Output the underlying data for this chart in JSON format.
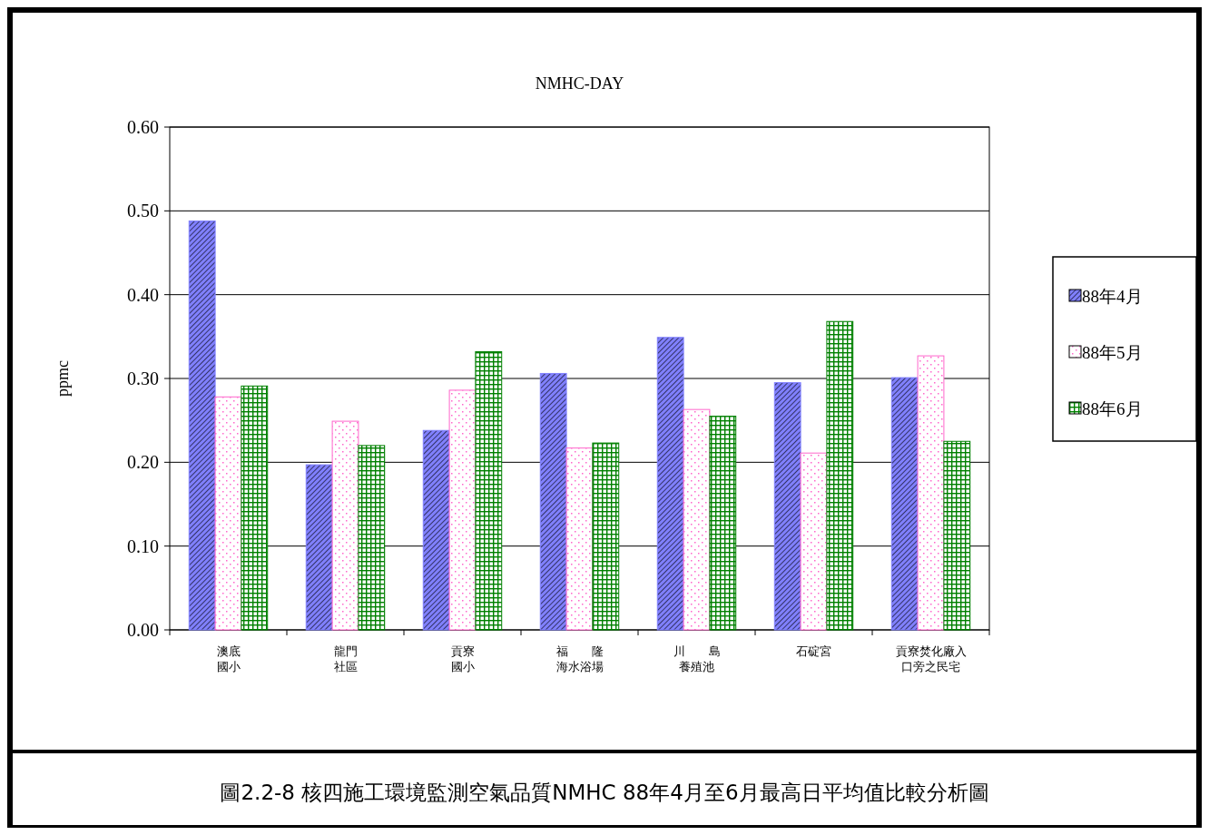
{
  "chart_data": {
    "type": "bar",
    "title": "NMHC-DAY",
    "ylabel": "ppmc",
    "categories": [
      "澳底國小",
      "龍門社區",
      "貢寮國小",
      "福　　隆海水浴場",
      "川　　島養殖池",
      "石碇宮",
      "貢寮焚化廠入口旁之民宅"
    ],
    "series": [
      {
        "name": "88年4月",
        "color": "#8080ff",
        "values": [
          0.488,
          0.197,
          0.238,
          0.306,
          0.349,
          0.295,
          0.301
        ]
      },
      {
        "name": "88年5月",
        "color": "#ff66cc",
        "values": [
          0.278,
          0.249,
          0.286,
          0.217,
          0.263,
          0.211,
          0.327
        ]
      },
      {
        "name": "88年6月",
        "color": "#008000",
        "values": [
          0.291,
          0.22,
          0.332,
          0.223,
          0.255,
          0.368,
          0.225
        ]
      }
    ],
    "ylim": [
      0,
      0.6
    ],
    "yticks": [
      {
        "value": 0,
        "label": "0.00"
      },
      {
        "value": 0.1,
        "label": "0.10"
      },
      {
        "value": 0.2,
        "label": "0.20"
      },
      {
        "value": 0.3,
        "label": "0.30"
      },
      {
        "value": 0.4,
        "label": "0.40"
      },
      {
        "value": 0.5,
        "label": "0.50"
      },
      {
        "value": 0.6,
        "label": "0.60"
      }
    ],
    "grid": "y",
    "legend": "right",
    "annotations": [
      "圖2.2-8 核四施工環境監測空氣品質NMHC 88年4月至6月最高日平均值比較分析圖"
    ]
  }
}
